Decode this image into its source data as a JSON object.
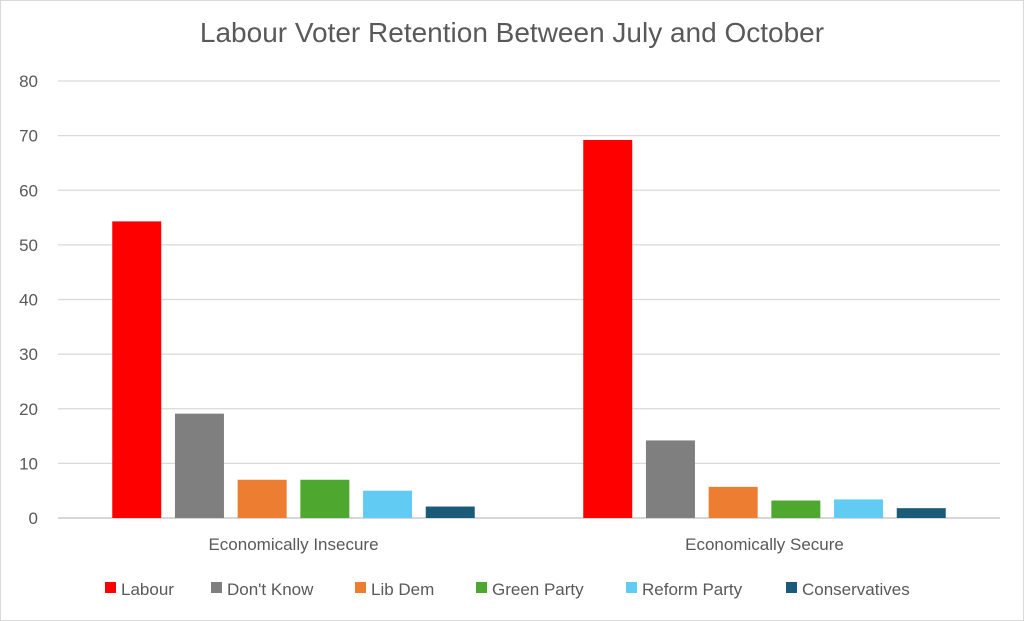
{
  "chart_data": {
    "type": "bar",
    "title": "Labour Voter Retention Between July and October",
    "xlabel": "",
    "ylabel": "",
    "ylim": [
      0,
      80
    ],
    "yticks": [
      0,
      10,
      20,
      30,
      40,
      50,
      60,
      70,
      80
    ],
    "grid": true,
    "legend_position": "bottom",
    "categories": [
      "Economically Insecure",
      "Economically Secure"
    ],
    "series": [
      {
        "name": "Labour",
        "color": "#ff0000",
        "values": [
          54.3,
          69.2
        ]
      },
      {
        "name": "Don't Know",
        "color": "#7f7f7f",
        "values": [
          19.1,
          14.2
        ]
      },
      {
        "name": "Lib Dem",
        "color": "#ed7d31",
        "values": [
          7.0,
          5.7
        ]
      },
      {
        "name": "Green Party",
        "color": "#4ea72e",
        "values": [
          7.0,
          3.2
        ]
      },
      {
        "name": "Reform Party",
        "color": "#61cbf3",
        "values": [
          5.0,
          3.4
        ]
      },
      {
        "name": "Conservatives",
        "color": "#1a5c78",
        "values": [
          2.1,
          1.8
        ]
      }
    ]
  }
}
